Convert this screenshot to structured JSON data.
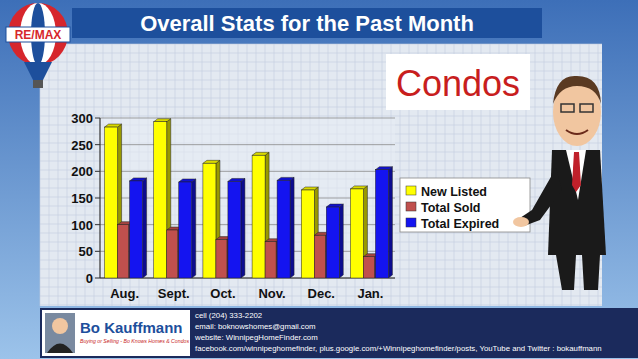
{
  "header": {
    "title": "Overall Stats for the Past Month",
    "logo": "RE/MAX"
  },
  "chart_data": {
    "type": "bar",
    "title": "Condos",
    "categories": [
      "Aug.",
      "Sept.",
      "Oct.",
      "Nov.",
      "Dec.",
      "Jan."
    ],
    "series": [
      {
        "name": "New Listed",
        "color": "#ffff00",
        "values": [
          283,
          293,
          215,
          230,
          165,
          167
        ]
      },
      {
        "name": "Total Sold",
        "color": "#c0504d",
        "values": [
          100,
          90,
          72,
          68,
          80,
          40
        ]
      },
      {
        "name": "Total Expired",
        "color": "#1414f0",
        "values": [
          182,
          180,
          181,
          183,
          133,
          203
        ]
      }
    ],
    "ylim": [
      0,
      300
    ],
    "yticks": [
      0,
      50,
      100,
      150,
      200,
      250,
      300
    ],
    "grid": true,
    "legend": "right"
  },
  "footer": {
    "name": "Bo Kauffmann",
    "tagline": "Buying or Selling - Bo Knows Homes & Condos",
    "lines": [
      "cell (204) 333-2202",
      "email: boknowshomes@gmail.com",
      "website: WinnipegHomeFinder.com",
      "facebook.com/winnipeghomefinder, plus.google.com/+Winnipeghomefinder/posts, YouTube and Twitter : bokauffmann"
    ]
  }
}
